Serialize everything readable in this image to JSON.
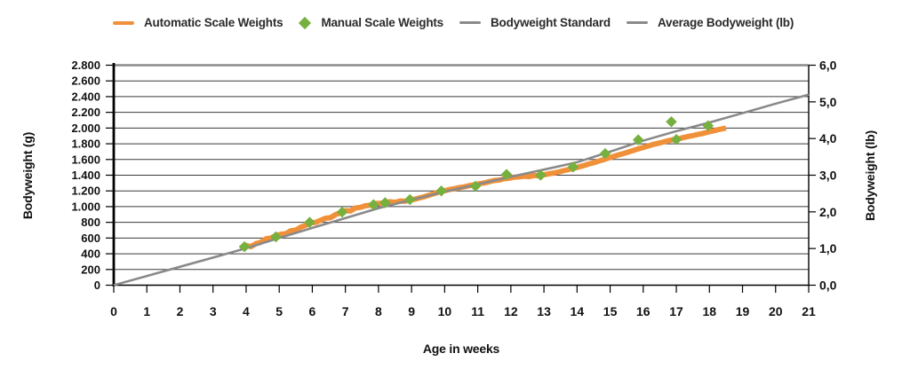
{
  "chart_data": {
    "type": "combo-line-scatter",
    "title": "",
    "xlabel": "Age in weeks",
    "ylabel_left": "Bodyweight (g)",
    "ylabel_right": "Bodyweight (lb)",
    "grid": "horizontal-only",
    "legend_position": "top",
    "x_axis": {
      "min": 0,
      "max": 21,
      "tick_step": 1,
      "tick_labels": [
        "0",
        "1",
        "2",
        "3",
        "4",
        "5",
        "6",
        "7",
        "8",
        "9",
        "10",
        "11",
        "12",
        "13",
        "14",
        "15",
        "16",
        "17",
        "18",
        "19",
        "20",
        "21"
      ]
    },
    "y_axis_left": {
      "min": 0,
      "max": 2800,
      "tick_step": 200,
      "tick_labels": [
        "0",
        "200",
        "400",
        "600",
        "800",
        "1.000",
        "1.200",
        "1.400",
        "1.600",
        "1.800",
        "2.000",
        "2.200",
        "2.400",
        "2.600",
        "2.800"
      ]
    },
    "y_axis_right": {
      "min": 0,
      "max": 6,
      "tick_step": 1,
      "tick_labels": [
        "0,0",
        "1,0",
        "2,0",
        "3,0",
        "4,0",
        "5,0",
        "6,0"
      ]
    },
    "legend": [
      {
        "label": "Automatic Scale Weights",
        "marker": "line",
        "color": "#F0913A"
      },
      {
        "label": "Manual Scale Weights",
        "marker": "diamond",
        "color": "#76B03E"
      },
      {
        "label": "Bodyweight Standard",
        "marker": "line",
        "color": "#8A8A8A"
      },
      {
        "label": "Average Bodyweight (lb)",
        "marker": "line",
        "color": "#8A8A8A"
      }
    ],
    "colors": {
      "automatic": "#F0913A",
      "manual": "#76B03E",
      "standard": "#8A8A8A",
      "grid": "#3a3a3a",
      "axis": "#000000",
      "top_border": "#8a8a8a",
      "background": "#ffffff"
    },
    "series": [
      {
        "name": "Automatic Scale Weights",
        "type": "line",
        "axis": "left",
        "color": "#F0913A",
        "stroke_width": 6,
        "points": [
          [
            3.82,
            468
          ],
          [
            4.0,
            505
          ],
          [
            4.15,
            492
          ],
          [
            4.3,
            530
          ],
          [
            4.45,
            548
          ],
          [
            4.6,
            590
          ],
          [
            4.75,
            600
          ],
          [
            4.9,
            632
          ],
          [
            5.05,
            648
          ],
          [
            5.2,
            655
          ],
          [
            5.35,
            692
          ],
          [
            5.5,
            700
          ],
          [
            5.65,
            738
          ],
          [
            5.8,
            762
          ],
          [
            5.95,
            795
          ],
          [
            6.1,
            798
          ],
          [
            6.25,
            825
          ],
          [
            6.4,
            852
          ],
          [
            6.55,
            860
          ],
          [
            6.7,
            898
          ],
          [
            6.85,
            922
          ],
          [
            7.0,
            948
          ],
          [
            7.15,
            945
          ],
          [
            7.3,
            982
          ],
          [
            7.45,
            990
          ],
          [
            7.6,
            1010
          ],
          [
            7.75,
            1018
          ],
          [
            7.9,
            1040
          ],
          [
            8.05,
            1042
          ],
          [
            8.2,
            1052
          ],
          [
            8.35,
            1062
          ],
          [
            8.5,
            1055
          ],
          [
            8.65,
            1072
          ],
          [
            8.8,
            1068
          ],
          [
            8.95,
            1085
          ],
          [
            9.1,
            1095
          ],
          [
            9.25,
            1112
          ],
          [
            9.4,
            1128
          ],
          [
            9.55,
            1148
          ],
          [
            9.7,
            1168
          ],
          [
            9.85,
            1188
          ],
          [
            10.0,
            1202
          ],
          [
            10.15,
            1218
          ],
          [
            10.3,
            1228
          ],
          [
            10.45,
            1242
          ],
          [
            10.6,
            1252
          ],
          [
            10.75,
            1268
          ],
          [
            10.9,
            1278
          ],
          [
            11.05,
            1292
          ],
          [
            11.2,
            1302
          ],
          [
            11.35,
            1318
          ],
          [
            11.5,
            1332
          ],
          [
            11.65,
            1338
          ],
          [
            11.8,
            1355
          ],
          [
            11.95,
            1362
          ],
          [
            12.1,
            1375
          ],
          [
            12.25,
            1378
          ],
          [
            12.4,
            1388
          ],
          [
            12.55,
            1382
          ],
          [
            12.7,
            1395
          ],
          [
            12.85,
            1392
          ],
          [
            13.0,
            1405
          ],
          [
            13.15,
            1418
          ],
          [
            13.3,
            1428
          ],
          [
            13.45,
            1442
          ],
          [
            13.6,
            1458
          ],
          [
            13.75,
            1472
          ],
          [
            13.9,
            1488
          ],
          [
            14.05,
            1505
          ],
          [
            14.2,
            1522
          ],
          [
            14.35,
            1542
          ],
          [
            14.5,
            1558
          ],
          [
            14.65,
            1578
          ],
          [
            14.8,
            1598
          ],
          [
            14.95,
            1618
          ],
          [
            15.1,
            1638
          ],
          [
            15.25,
            1658
          ],
          [
            15.4,
            1675
          ],
          [
            15.55,
            1695
          ],
          [
            15.7,
            1715
          ],
          [
            15.85,
            1735
          ],
          [
            16.0,
            1752
          ],
          [
            16.15,
            1772
          ],
          [
            16.3,
            1792
          ],
          [
            16.45,
            1805
          ],
          [
            16.6,
            1822
          ],
          [
            16.75,
            1838
          ],
          [
            16.9,
            1852
          ],
          [
            17.05,
            1862
          ],
          [
            17.2,
            1878
          ],
          [
            17.35,
            1892
          ],
          [
            17.5,
            1905
          ],
          [
            17.65,
            1918
          ],
          [
            17.8,
            1932
          ],
          [
            17.95,
            1948
          ],
          [
            18.1,
            1962
          ],
          [
            18.25,
            1978
          ],
          [
            18.4,
            1992
          ],
          [
            18.5,
            2000
          ]
        ]
      },
      {
        "name": "Manual Scale Weights",
        "type": "scatter-diamond",
        "axis": "left",
        "color": "#76B03E",
        "size": 12.5,
        "points": [
          [
            3.95,
            490
          ],
          [
            4.9,
            615
          ],
          [
            5.92,
            800
          ],
          [
            6.9,
            930
          ],
          [
            7.85,
            1025
          ],
          [
            8.2,
            1050
          ],
          [
            8.95,
            1090
          ],
          [
            9.9,
            1200
          ],
          [
            10.93,
            1260
          ],
          [
            11.87,
            1410
          ],
          [
            12.9,
            1400
          ],
          [
            13.88,
            1505
          ],
          [
            14.85,
            1675
          ],
          [
            15.85,
            1850
          ],
          [
            16.85,
            2080
          ],
          [
            17.0,
            1855
          ],
          [
            17.96,
            2030
          ]
        ]
      },
      {
        "name": "Bodyweight Standard",
        "type": "line",
        "axis": "left",
        "color": "#8A8A8A",
        "stroke_width": 2.4,
        "points": [
          [
            0,
            0
          ],
          [
            1,
            117
          ],
          [
            2,
            235
          ],
          [
            3,
            352
          ],
          [
            4,
            470
          ],
          [
            5,
            600
          ],
          [
            6,
            730
          ],
          [
            7,
            855
          ],
          [
            8,
            980
          ],
          [
            9,
            1085
          ],
          [
            10,
            1190
          ],
          [
            11,
            1285
          ],
          [
            12,
            1380
          ],
          [
            13,
            1472
          ],
          [
            14,
            1565
          ],
          [
            15,
            1700
          ],
          [
            16,
            1840
          ],
          [
            17,
            1960
          ],
          [
            18,
            2070
          ],
          [
            19,
            2190
          ],
          [
            20,
            2310
          ],
          [
            21,
            2425
          ]
        ]
      },
      {
        "name": "Average Bodyweight (lb)",
        "type": "line",
        "axis": "right",
        "color": "#8A8A8A",
        "stroke_width": 2.4,
        "points": [
          [
            0,
            0
          ],
          [
            1,
            0.25
          ],
          [
            2,
            0.5
          ],
          [
            3,
            0.75
          ],
          [
            4,
            1.01
          ],
          [
            5,
            1.29
          ],
          [
            6,
            1.56
          ],
          [
            7,
            1.83
          ],
          [
            8,
            2.1
          ],
          [
            9,
            2.33
          ],
          [
            10,
            2.55
          ],
          [
            11,
            2.75
          ],
          [
            12,
            2.96
          ],
          [
            13,
            3.15
          ],
          [
            14,
            3.35
          ],
          [
            15,
            3.64
          ],
          [
            16,
            3.94
          ],
          [
            17,
            4.2
          ],
          [
            18,
            4.44
          ],
          [
            19,
            4.69
          ],
          [
            20,
            4.95
          ],
          [
            21,
            5.2
          ]
        ]
      }
    ]
  }
}
